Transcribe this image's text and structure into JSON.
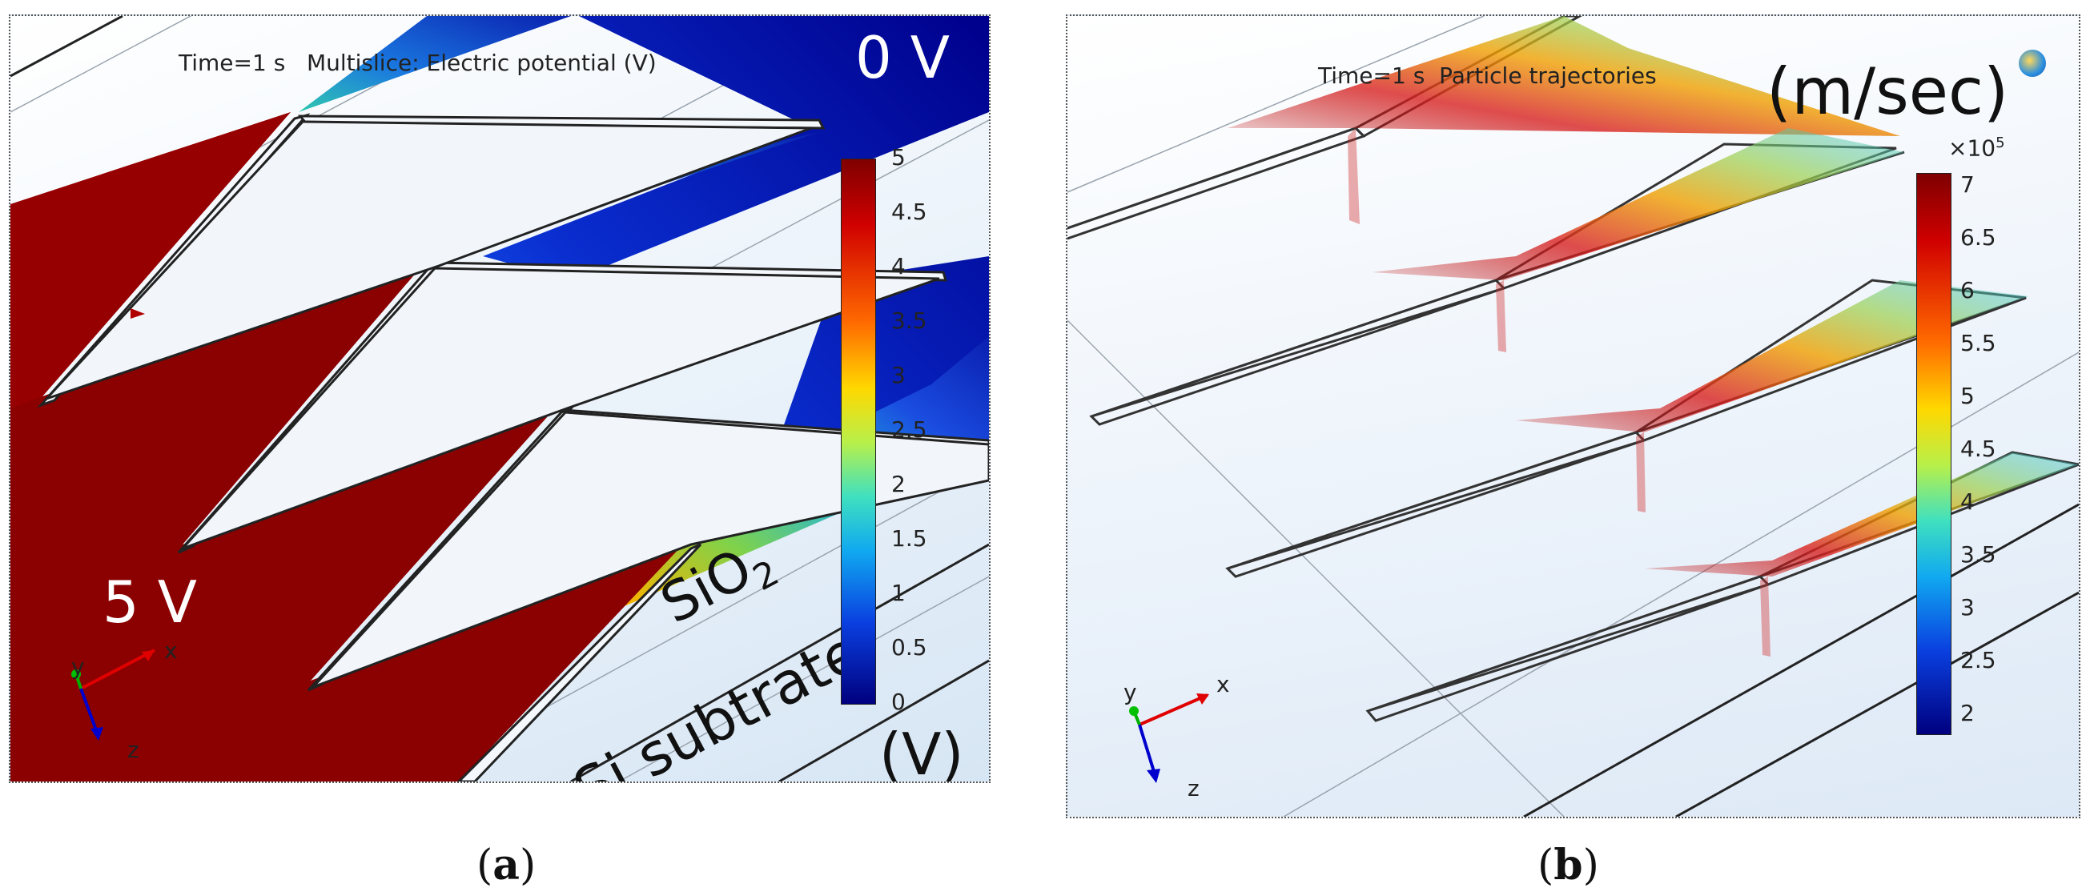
{
  "panel_a": {
    "sim_title": "Time=1 s   Multislice: Electric potential (V)",
    "label_high": "0 V",
    "label_low": "5 V",
    "label_sio2": "SiO",
    "label_sio2_sub": "2",
    "label_substrate": "Si subtrate",
    "unit": "(V)",
    "colorbar_ticks": [
      "5",
      "4.5",
      "4",
      "3.5",
      "3",
      "2.5",
      "2",
      "1.5",
      "1",
      "0.5",
      "0"
    ],
    "axes": {
      "x": "x",
      "y": "y",
      "z": "z"
    },
    "caption_letter": "a"
  },
  "panel_b": {
    "sim_title": "Time=1 s  Particle trajectories",
    "unit": "(m/sec)",
    "multiplier": "×10",
    "multiplier_exp": "5",
    "colorbar_ticks": [
      "7",
      "6.5",
      "6",
      "5.5",
      "5",
      "4.5",
      "4",
      "3.5",
      "3",
      "2.5",
      "2"
    ],
    "axes": {
      "x": "x",
      "y": "y",
      "z": "z"
    },
    "caption_letter": "b"
  },
  "colors": {
    "jet_red": "#8b0000",
    "jet_blue": "#00008b",
    "frame_dots": "#555555"
  }
}
